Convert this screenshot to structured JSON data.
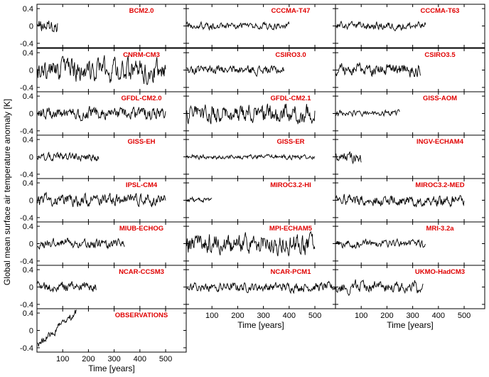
{
  "chart_data": {
    "type": "line",
    "ylabel": "Global mean surface air temperature anomaly  [K]",
    "xlabel": "Time  [years]",
    "ylim": [
      -0.5,
      0.5
    ],
    "xlim": [
      0,
      580
    ],
    "yticks": [
      "0.4",
      "0",
      "-0.4"
    ],
    "ytick_values": [
      0.4,
      0,
      -0.4
    ],
    "xticks": [
      "100",
      "200",
      "300",
      "400",
      "500"
    ],
    "xtick_values": [
      100,
      200,
      300,
      400,
      500
    ],
    "line_color": "#000000",
    "title_color": "#e00000",
    "panels": [
      {
        "title": "BCM2.0",
        "length": 80,
        "amplitude": 0.12,
        "trend": 0.0
      },
      {
        "title": "CCCMA-T47",
        "length": 400,
        "amplitude": 0.06,
        "trend": 0.0
      },
      {
        "title": "CCCMA-T63",
        "length": 350,
        "amplitude": 0.07,
        "trend": 0.0
      },
      {
        "title": "CNRM-CM3",
        "length": 500,
        "amplitude": 0.2,
        "trend": 0.0
      },
      {
        "title": "CSIRO3.0",
        "length": 380,
        "amplitude": 0.08,
        "trend": 0.0
      },
      {
        "title": "CSIRO3.5",
        "length": 330,
        "amplitude": 0.11,
        "trend": 0.0
      },
      {
        "title": "GFDL-CM2.0",
        "length": 500,
        "amplitude": 0.11,
        "trend": 0.0
      },
      {
        "title": "GFDL-CM2.1",
        "length": 500,
        "amplitude": 0.16,
        "trend": 0.0
      },
      {
        "title": "GISS-AOM",
        "length": 250,
        "amplitude": 0.05,
        "trend": 0.0
      },
      {
        "title": "GISS-EH",
        "length": 240,
        "amplitude": 0.07,
        "trend": 0.0
      },
      {
        "title": "GISS-ER",
        "length": 500,
        "amplitude": 0.04,
        "trend": 0.0
      },
      {
        "title": "INGV-ECHAM4",
        "length": 100,
        "amplitude": 0.1,
        "trend": 0.0
      },
      {
        "title": "IPSL-CM4",
        "length": 500,
        "amplitude": 0.11,
        "trend": 0.0
      },
      {
        "title": "MIROC3.2-HI",
        "length": 100,
        "amplitude": 0.05,
        "trend": 0.0
      },
      {
        "title": "MIROC3.2-MED",
        "length": 500,
        "amplitude": 0.1,
        "trend": 0.0
      },
      {
        "title": "MIUB-ECHOG",
        "length": 340,
        "amplitude": 0.09,
        "trend": 0.0
      },
      {
        "title": "MPI-ECHAM5",
        "length": 500,
        "amplitude": 0.18,
        "trend": 0.0
      },
      {
        "title": "MRI-3.2a",
        "length": 350,
        "amplitude": 0.07,
        "trend": 0.0
      },
      {
        "title": "NCAR-CCSM3",
        "length": 230,
        "amplitude": 0.09,
        "trend": 0.0
      },
      {
        "title": "NCAR-PCM1",
        "length": 580,
        "amplitude": 0.08,
        "trend": 0.0
      },
      {
        "title": "UKMO-HadCM3",
        "length": 340,
        "amplitude": 0.11,
        "trend": 0.0
      },
      {
        "title": "OBSERVATIONS",
        "length": 155,
        "amplitude": 0.08,
        "trend": 0.9
      }
    ]
  }
}
